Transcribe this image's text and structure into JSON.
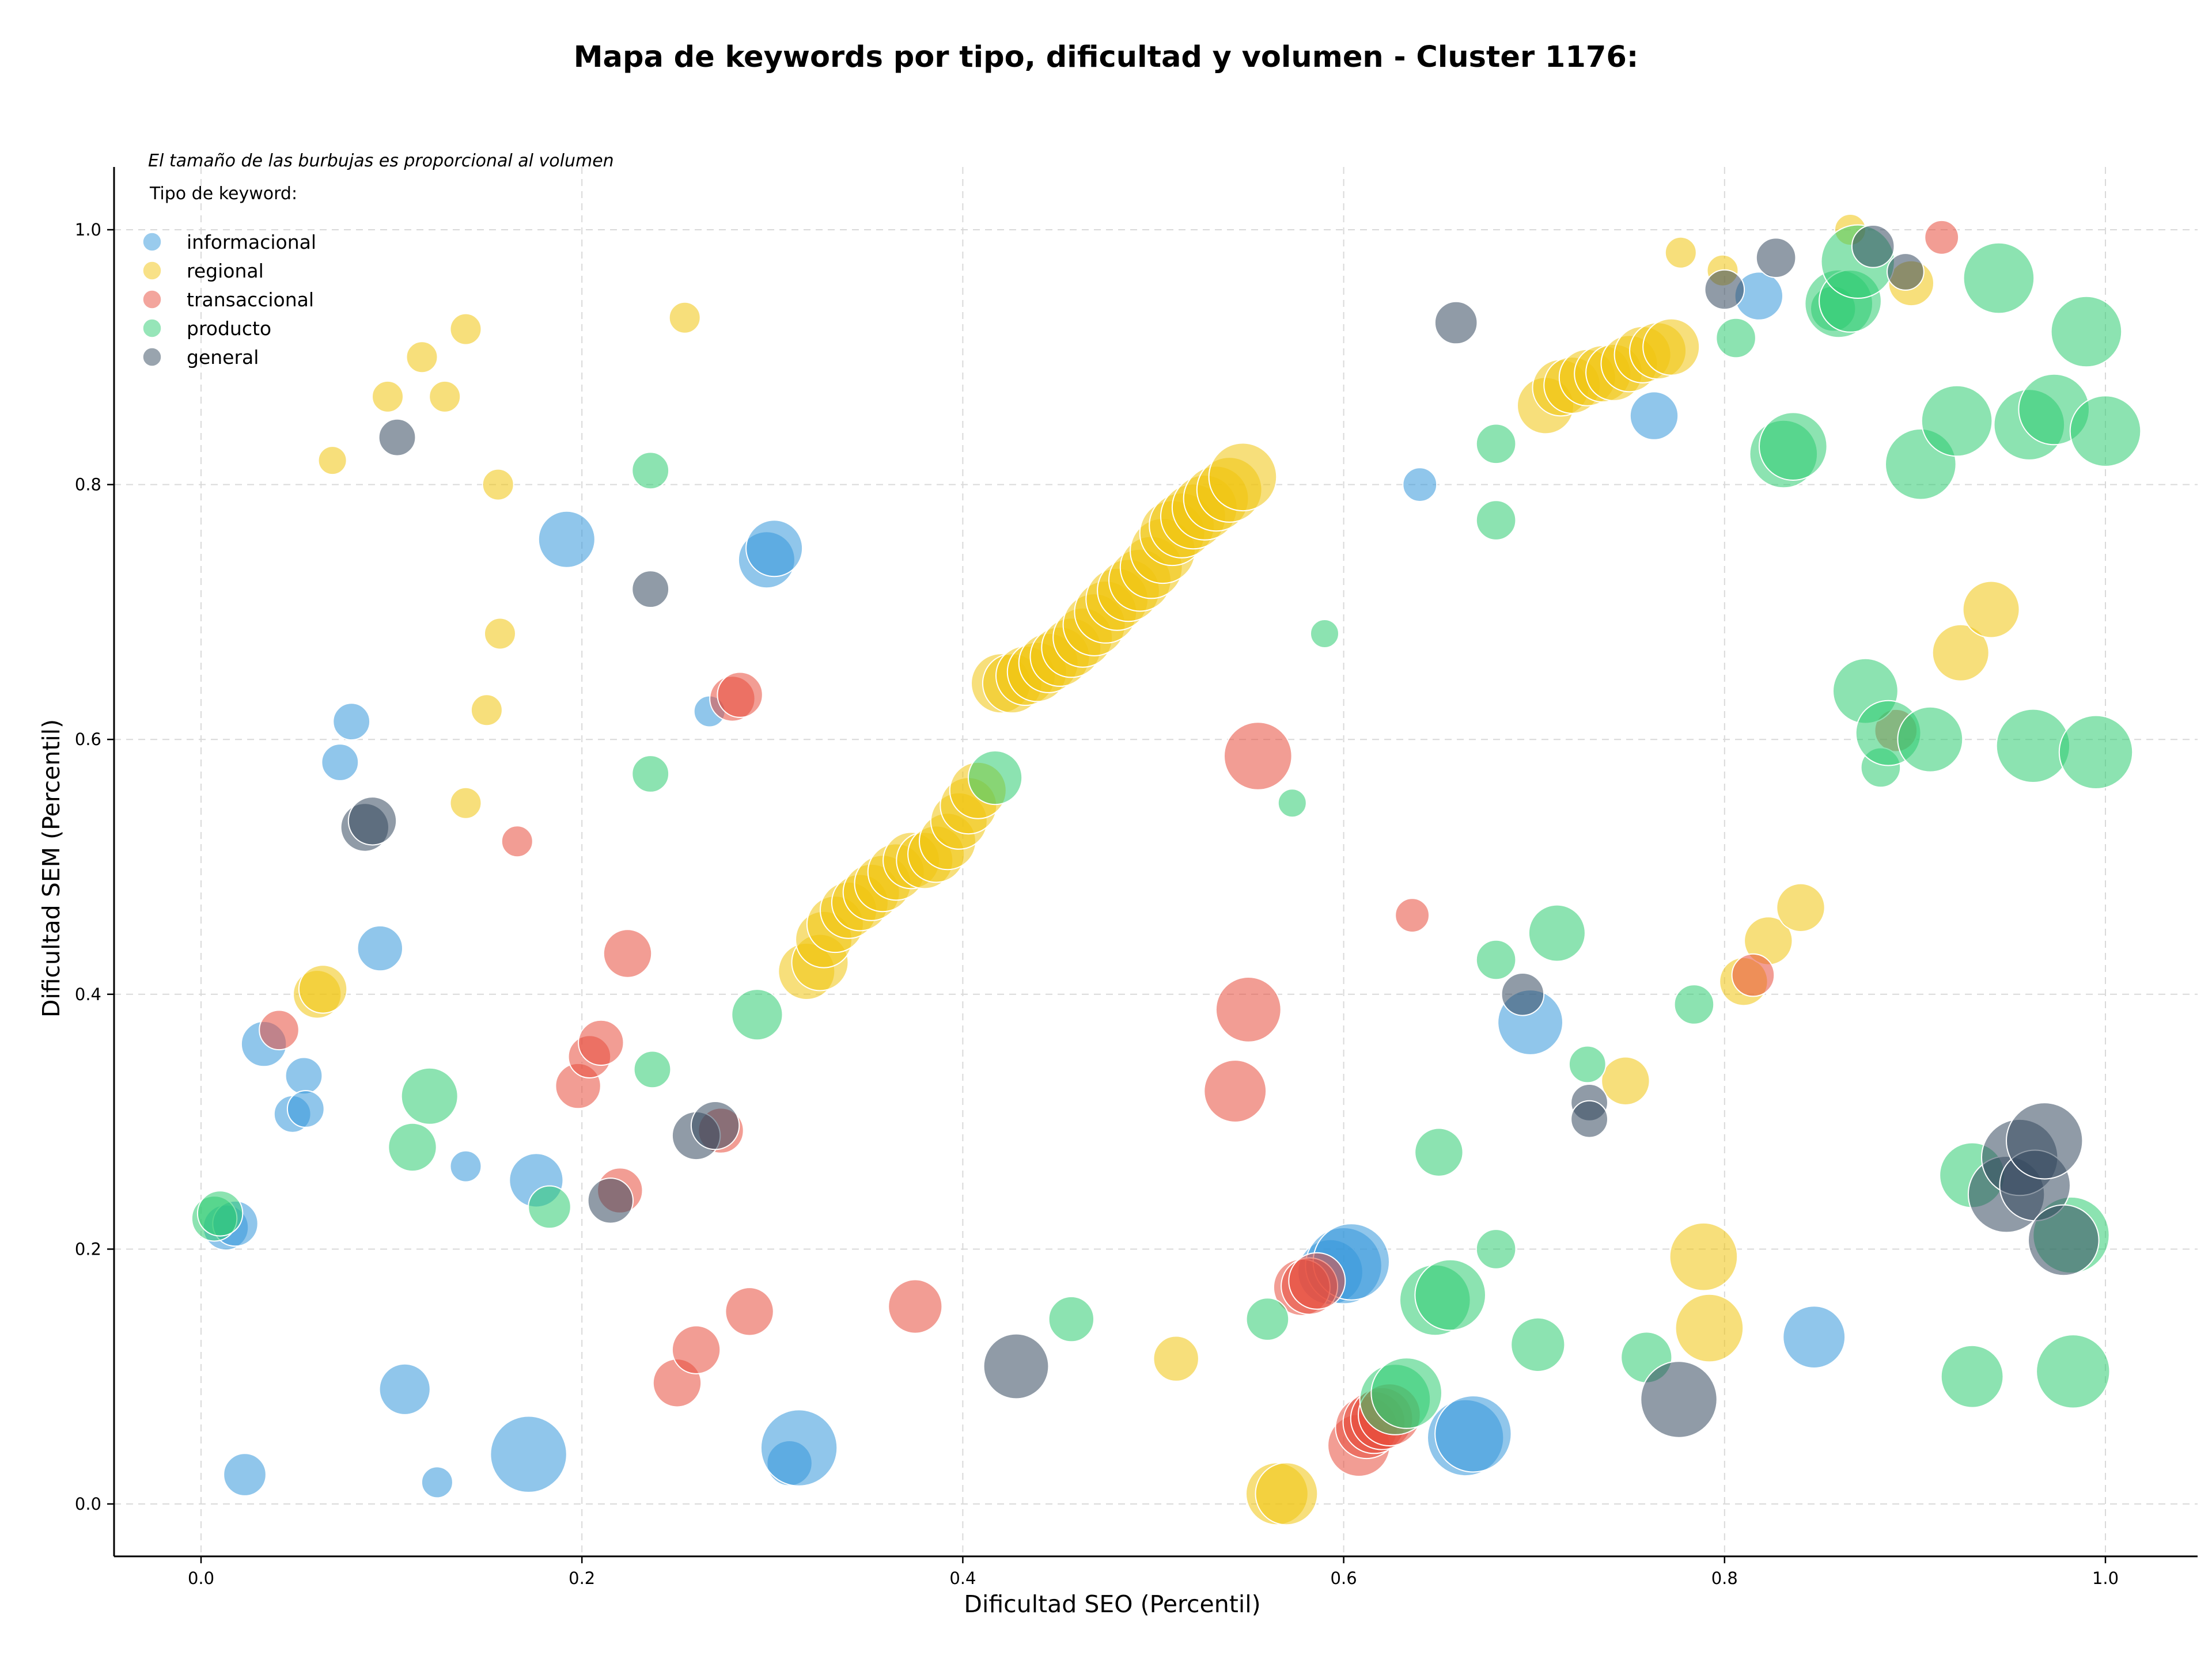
{
  "chart_data": {
    "type": "scatter",
    "title": "Mapa de keywords por tipo, dificultad y volumen - Cluster 1176:",
    "xlabel": "Dificultad SEO (Percentil)",
    "ylabel": "Dificultad SEM (Percentil)",
    "xlim": [
      -0.045,
      1.05
    ],
    "ylim": [
      -0.04,
      1.05
    ],
    "xticks": [
      "0.0",
      "0.2",
      "0.4",
      "0.6",
      "0.8",
      "1.0"
    ],
    "yticks": [
      "0.0",
      "0.2",
      "0.4",
      "0.6",
      "0.8",
      "1.0"
    ],
    "grid": true,
    "note": "El tamaño de las burbujas es proporcional al volumen",
    "legend_title": "Tipo de keyword:",
    "legend_position": "top-left",
    "series": [
      {
        "name": "informacional",
        "color": "#3498db",
        "points": [
          [
            0.013,
            0.217,
            16
          ],
          [
            0.018,
            0.22,
            16
          ],
          [
            0.023,
            0.023,
            15
          ],
          [
            0.033,
            0.361,
            16
          ],
          [
            0.048,
            0.306,
            13
          ],
          [
            0.054,
            0.336,
            13
          ],
          [
            0.055,
            0.31,
            13
          ],
          [
            0.073,
            0.582,
            13
          ],
          [
            0.079,
            0.614,
            13
          ],
          [
            0.094,
            0.436,
            16
          ],
          [
            0.107,
            0.09,
            18
          ],
          [
            0.124,
            0.017,
            11
          ],
          [
            0.139,
            0.265,
            11
          ],
          [
            0.172,
            0.039,
            27
          ],
          [
            0.176,
            0.254,
            19
          ],
          [
            0.192,
            0.757,
            20
          ],
          [
            0.267,
            0.622,
            11
          ],
          [
            0.297,
            0.741,
            20
          ],
          [
            0.301,
            0.75,
            20
          ],
          [
            0.309,
            0.032,
            16
          ],
          [
            0.314,
            0.044,
            27
          ],
          [
            0.593,
            0.182,
            23
          ],
          [
            0.6,
            0.187,
            27
          ],
          [
            0.604,
            0.19,
            27
          ],
          [
            0.64,
            0.8,
            12
          ],
          [
            0.664,
            0.052,
            27
          ],
          [
            0.668,
            0.055,
            27
          ],
          [
            0.698,
            0.378,
            23
          ],
          [
            0.763,
            0.854,
            17
          ],
          [
            0.818,
            0.948,
            17
          ],
          [
            0.847,
            0.131,
            22
          ]
        ]
      },
      {
        "name": "regional",
        "color": "#f1c40f",
        "points": [
          [
            0.061,
            0.4,
            17
          ],
          [
            0.064,
            0.404,
            17
          ],
          [
            0.069,
            0.819,
            10
          ],
          [
            0.098,
            0.869,
            11
          ],
          [
            0.116,
            0.9,
            11
          ],
          [
            0.128,
            0.869,
            11
          ],
          [
            0.139,
            0.922,
            11
          ],
          [
            0.139,
            0.55,
            11
          ],
          [
            0.15,
            0.623,
            11
          ],
          [
            0.156,
            0.8,
            11
          ],
          [
            0.157,
            0.683,
            11
          ],
          [
            0.254,
            0.931,
            11
          ],
          [
            0.318,
            0.418,
            20
          ],
          [
            0.325,
            0.425,
            20
          ],
          [
            0.327,
            0.443,
            20
          ],
          [
            0.333,
            0.455,
            20
          ],
          [
            0.34,
            0.466,
            20
          ],
          [
            0.346,
            0.472,
            20
          ],
          [
            0.352,
            0.48,
            20
          ],
          [
            0.358,
            0.487,
            20
          ],
          [
            0.365,
            0.496,
            20
          ],
          [
            0.373,
            0.505,
            20
          ],
          [
            0.38,
            0.505,
            20
          ],
          [
            0.386,
            0.51,
            20
          ],
          [
            0.392,
            0.52,
            20
          ],
          [
            0.398,
            0.536,
            20
          ],
          [
            0.403,
            0.548,
            20
          ],
          [
            0.408,
            0.56,
            20
          ],
          [
            0.42,
            0.644,
            21
          ],
          [
            0.426,
            0.644,
            21
          ],
          [
            0.433,
            0.65,
            21
          ],
          [
            0.439,
            0.653,
            21
          ],
          [
            0.445,
            0.66,
            21
          ],
          [
            0.451,
            0.665,
            21
          ],
          [
            0.457,
            0.672,
            21
          ],
          [
            0.463,
            0.68,
            21
          ],
          [
            0.469,
            0.69,
            22
          ],
          [
            0.475,
            0.7,
            22
          ],
          [
            0.481,
            0.71,
            22
          ],
          [
            0.487,
            0.717,
            22
          ],
          [
            0.493,
            0.725,
            22
          ],
          [
            0.499,
            0.735,
            22
          ],
          [
            0.505,
            0.748,
            23
          ],
          [
            0.51,
            0.762,
            23
          ],
          [
            0.515,
            0.768,
            23
          ],
          [
            0.521,
            0.775,
            23
          ],
          [
            0.527,
            0.782,
            23
          ],
          [
            0.533,
            0.789,
            23
          ],
          [
            0.54,
            0.796,
            23
          ],
          [
            0.547,
            0.806,
            24
          ],
          [
            0.512,
            0.114,
            16
          ],
          [
            0.565,
            0.008,
            22
          ],
          [
            0.57,
            0.008,
            22
          ],
          [
            0.706,
            0.862,
            20
          ],
          [
            0.714,
            0.876,
            20
          ],
          [
            0.72,
            0.878,
            20
          ],
          [
            0.728,
            0.884,
            20
          ],
          [
            0.736,
            0.887,
            20
          ],
          [
            0.742,
            0.888,
            20
          ],
          [
            0.75,
            0.895,
            20
          ],
          [
            0.757,
            0.902,
            20
          ],
          [
            0.765,
            0.905,
            20
          ],
          [
            0.772,
            0.908,
            20
          ],
          [
            0.748,
            0.332,
            17
          ],
          [
            0.777,
            0.982,
            11
          ],
          [
            0.789,
            0.194,
            24
          ],
          [
            0.792,
            0.138,
            24
          ],
          [
            0.799,
            0.968,
            11
          ],
          [
            0.81,
            0.41,
            17
          ],
          [
            0.823,
            0.442,
            17
          ],
          [
            0.84,
            0.468,
            17
          ],
          [
            0.866,
            1.0,
            11
          ],
          [
            0.898,
            0.958,
            16
          ],
          [
            0.924,
            0.668,
            20
          ],
          [
            0.94,
            0.702,
            20
          ]
        ]
      },
      {
        "name": "transaccional",
        "color": "#e74c3c",
        "points": [
          [
            0.041,
            0.372,
            14
          ],
          [
            0.166,
            0.52,
            11
          ],
          [
            0.198,
            0.328,
            16
          ],
          [
            0.204,
            0.351,
            15
          ],
          [
            0.21,
            0.362,
            16
          ],
          [
            0.22,
            0.246,
            16
          ],
          [
            0.224,
            0.432,
            17
          ],
          [
            0.25,
            0.095,
            17
          ],
          [
            0.26,
            0.121,
            17
          ],
          [
            0.273,
            0.293,
            16
          ],
          [
            0.279,
            0.632,
            16
          ],
          [
            0.283,
            0.635,
            16
          ],
          [
            0.288,
            0.151,
            17
          ],
          [
            0.375,
            0.155,
            19
          ],
          [
            0.543,
            0.324,
            22
          ],
          [
            0.55,
            0.388,
            23
          ],
          [
            0.555,
            0.587,
            24
          ],
          [
            0.578,
            0.17,
            20
          ],
          [
            0.582,
            0.171,
            20
          ],
          [
            0.586,
            0.175,
            20
          ],
          [
            0.608,
            0.046,
            22
          ],
          [
            0.612,
            0.06,
            22
          ],
          [
            0.616,
            0.064,
            22
          ],
          [
            0.62,
            0.067,
            22
          ],
          [
            0.624,
            0.07,
            22
          ],
          [
            0.636,
            0.462,
            12
          ],
          [
            0.815,
            0.415,
            15
          ],
          [
            0.89,
            0.607,
            15
          ],
          [
            0.914,
            0.994,
            12
          ]
        ]
      },
      {
        "name": "producto",
        "color": "#2ecc71",
        "points": [
          [
            0.007,
            0.224,
            16
          ],
          [
            0.01,
            0.228,
            16
          ],
          [
            0.111,
            0.28,
            17
          ],
          [
            0.12,
            0.32,
            20
          ],
          [
            0.183,
            0.233,
            15
          ],
          [
            0.236,
            0.811,
            13
          ],
          [
            0.236,
            0.573,
            13
          ],
          [
            0.237,
            0.341,
            13
          ],
          [
            0.292,
            0.384,
            18
          ],
          [
            0.417,
            0.57,
            19
          ],
          [
            0.457,
            0.145,
            16
          ],
          [
            0.56,
            0.145,
            15
          ],
          [
            0.573,
            0.55,
            10
          ],
          [
            0.59,
            0.683,
            10
          ],
          [
            0.627,
            0.082,
            25
          ],
          [
            0.633,
            0.087,
            25
          ],
          [
            0.648,
            0.16,
            25
          ],
          [
            0.65,
            0.276,
            17
          ],
          [
            0.656,
            0.164,
            25
          ],
          [
            0.68,
            0.832,
            14
          ],
          [
            0.68,
            0.772,
            14
          ],
          [
            0.68,
            0.427,
            14
          ],
          [
            0.68,
            0.2,
            14
          ],
          [
            0.702,
            0.125,
            19
          ],
          [
            0.712,
            0.448,
            20
          ],
          [
            0.728,
            0.345,
            13
          ],
          [
            0.759,
            0.115,
            18
          ],
          [
            0.784,
            0.392,
            14
          ],
          [
            0.806,
            0.915,
            14
          ],
          [
            0.831,
            0.824,
            24
          ],
          [
            0.836,
            0.83,
            24
          ],
          [
            0.857,
            0.938,
            16
          ],
          [
            0.86,
            0.942,
            24
          ],
          [
            0.866,
            0.944,
            22
          ],
          [
            0.87,
            0.975,
            26
          ],
          [
            0.874,
            0.638,
            23
          ],
          [
            0.882,
            0.578,
            14
          ],
          [
            0.886,
            0.605,
            23
          ],
          [
            0.903,
            0.816,
            25
          ],
          [
            0.908,
            0.6,
            23
          ],
          [
            0.922,
            0.85,
            25
          ],
          [
            0.93,
            0.258,
            23
          ],
          [
            0.93,
            0.1,
            22
          ],
          [
            0.944,
            0.962,
            25
          ],
          [
            0.96,
            0.847,
            25
          ],
          [
            0.962,
            0.595,
            26
          ],
          [
            0.973,
            0.859,
            25
          ],
          [
            0.982,
            0.211,
            27
          ],
          [
            0.983,
            0.104,
            26
          ],
          [
            0.99,
            0.92,
            25
          ],
          [
            0.995,
            0.59,
            26
          ],
          [
            1.0,
            0.842,
            25
          ]
        ]
      },
      {
        "name": "general",
        "color": "#34495e",
        "points": [
          [
            0.086,
            0.531,
            17
          ],
          [
            0.09,
            0.536,
            17
          ],
          [
            0.103,
            0.837,
            13
          ],
          [
            0.215,
            0.238,
            16
          ],
          [
            0.236,
            0.718,
            13
          ],
          [
            0.26,
            0.289,
            17
          ],
          [
            0.27,
            0.297,
            17
          ],
          [
            0.428,
            0.108,
            23
          ],
          [
            0.659,
            0.927,
            15
          ],
          [
            0.694,
            0.4,
            15
          ],
          [
            0.729,
            0.315,
            13
          ],
          [
            0.729,
            0.302,
            13
          ],
          [
            0.776,
            0.082,
            27
          ],
          [
            0.8,
            0.953,
            14
          ],
          [
            0.827,
            0.978,
            14
          ],
          [
            0.878,
            0.987,
            15
          ],
          [
            0.895,
            0.967,
            13
          ],
          [
            0.948,
            0.243,
            27
          ],
          [
            0.955,
            0.272,
            27
          ],
          [
            0.963,
            0.25,
            25
          ],
          [
            0.968,
            0.285,
            27
          ],
          [
            0.978,
            0.207,
            25
          ]
        ]
      }
    ]
  }
}
